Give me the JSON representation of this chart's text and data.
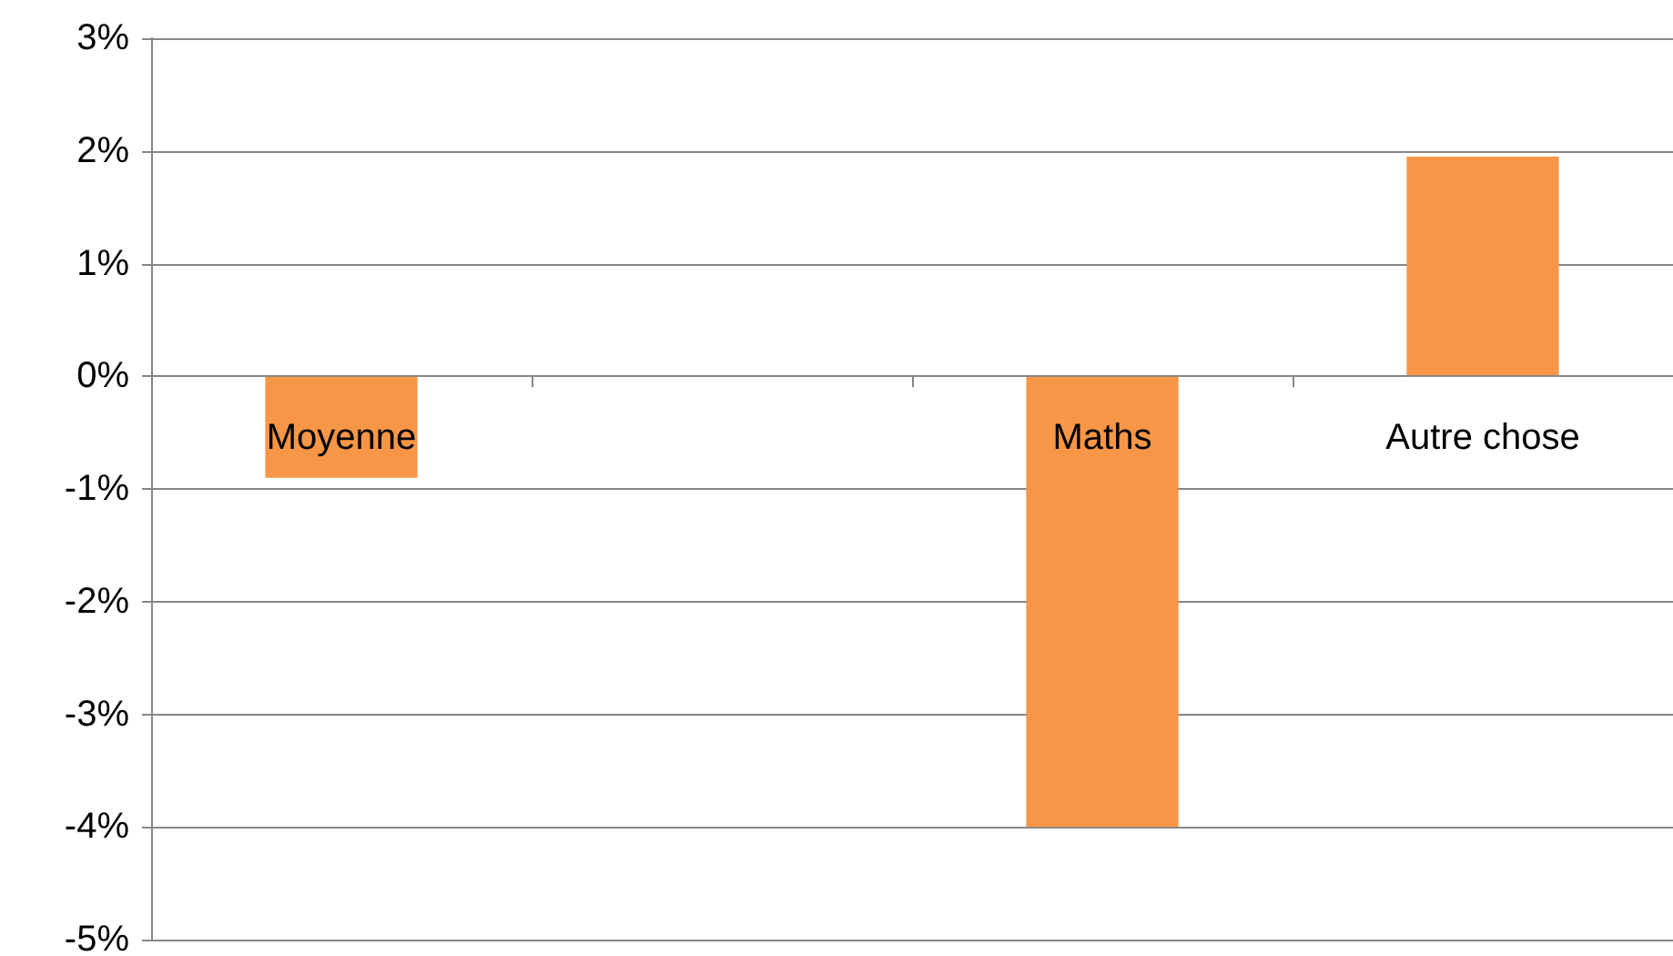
{
  "chart_data": {
    "type": "bar",
    "categories": [
      "Moyenne",
      null,
      "Maths",
      "Autre chose"
    ],
    "values": [
      -0.9,
      null,
      -4.0,
      1.95
    ],
    "color": "#f79646",
    "ylim": [
      -5,
      3
    ],
    "yticks": [
      {
        "value": -5,
        "label": "-5%"
      },
      {
        "value": -4,
        "label": "-4%"
      },
      {
        "value": -3,
        "label": "-3%"
      },
      {
        "value": -2,
        "label": "-2%"
      },
      {
        "value": -1,
        "label": "-1%"
      },
      {
        "value": 0,
        "label": "0%"
      },
      {
        "value": 1,
        "label": "1%"
      },
      {
        "value": 2,
        "label": "2%"
      },
      {
        "value": 3,
        "label": "3%"
      }
    ],
    "grid": "y"
  }
}
